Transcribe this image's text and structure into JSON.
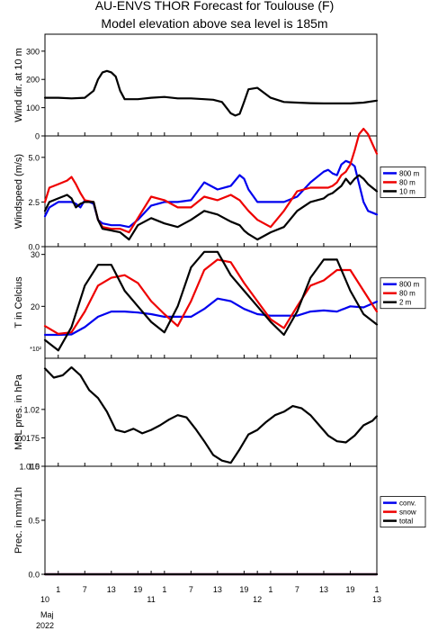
{
  "title_lines": [
    "AU-ENVS THOR Forecast for Toulouse (F)",
    "Model elevation above sea level is  185m"
  ],
  "colors": {
    "blue": "#0000ee",
    "red": "#ee0000",
    "black": "#000000"
  },
  "x_axis": {
    "tick_labels": [
      "10",
      "1",
      "7",
      "13",
      "19",
      "11",
      "1",
      "7",
      "13",
      "19",
      "12",
      "1",
      "7",
      "13",
      "19",
      "1",
      "13"
    ],
    "tick_hours": [
      0,
      3,
      9,
      15,
      21,
      24,
      27,
      33,
      39,
      45,
      48,
      51,
      57,
      63,
      69,
      75,
      75
    ],
    "month_label": "Maj",
    "year_label": "2022",
    "range_hours": [
      0,
      75
    ]
  },
  "chart_data": [
    {
      "type": "line",
      "ylabel": "Wind dir. at 10 m",
      "ylim": [
        0,
        360
      ],
      "yticks": [
        0,
        100,
        200,
        300
      ],
      "grid": false,
      "series": [
        {
          "color": "#000000",
          "x": [
            0,
            3,
            6,
            9,
            11,
            12,
            13,
            14,
            15,
            16,
            17,
            18,
            21,
            24,
            27,
            30,
            33,
            36,
            38,
            40,
            41,
            42,
            43,
            44,
            45,
            46,
            48,
            51,
            54,
            57,
            60,
            63,
            66,
            69,
            72,
            75
          ],
          "y": [
            135,
            135,
            133,
            135,
            160,
            200,
            225,
            230,
            225,
            210,
            160,
            130,
            130,
            135,
            138,
            133,
            133,
            130,
            128,
            120,
            100,
            80,
            72,
            78,
            120,
            165,
            170,
            135,
            120,
            118,
            116,
            115,
            115,
            115,
            118,
            125
          ]
        }
      ]
    },
    {
      "type": "line",
      "ylabel": "Windspeed (m/s)",
      "ylim": [
        0,
        6.2
      ],
      "yticks": [
        0,
        2.5,
        5
      ],
      "yticklabels": [
        "0.0",
        "2.5",
        "5.0"
      ],
      "grid": false,
      "legend": "right",
      "series": [
        {
          "name": "800 m",
          "color": "#0000ee",
          "x": [
            0,
            1,
            3,
            5,
            6,
            7,
            8,
            9,
            11,
            12,
            13,
            15,
            17,
            19,
            21,
            24,
            27,
            30,
            33,
            36,
            39,
            42,
            44,
            45,
            46,
            48,
            51,
            54,
            57,
            60,
            63,
            64,
            65,
            66,
            67,
            68,
            69,
            70,
            71,
            72,
            73,
            75
          ],
          "y": [
            1.7,
            2.2,
            2.5,
            2.5,
            2.5,
            2.4,
            2.2,
            2.6,
            2.4,
            1.5,
            1.3,
            1.2,
            1.2,
            1.1,
            1.5,
            2.3,
            2.5,
            2.5,
            2.6,
            3.6,
            3.2,
            3.4,
            4.0,
            3.8,
            3.2,
            2.5,
            2.5,
            2.5,
            2.8,
            3.6,
            4.2,
            4.3,
            4.1,
            4.0,
            4.6,
            4.8,
            4.7,
            4.5,
            3.5,
            2.5,
            2.0,
            1.8
          ]
        },
        {
          "name": "80 m",
          "color": "#ee0000",
          "x": [
            0,
            1,
            3,
            5,
            6,
            7,
            8,
            9,
            11,
            12,
            13,
            15,
            17,
            19,
            21,
            24,
            27,
            30,
            33,
            36,
            39,
            42,
            44,
            45,
            46,
            48,
            51,
            54,
            57,
            60,
            63,
            64,
            65,
            66,
            67,
            68,
            69,
            70,
            71,
            72,
            73,
            75
          ],
          "y": [
            2.5,
            3.3,
            3.5,
            3.7,
            3.9,
            3.5,
            3.0,
            2.6,
            2.5,
            1.5,
            1.1,
            1.0,
            1.0,
            0.8,
            1.6,
            2.8,
            2.6,
            2.2,
            2.2,
            2.8,
            2.6,
            2.9,
            2.6,
            2.3,
            2.0,
            1.5,
            1.1,
            2.0,
            3.1,
            3.3,
            3.3,
            3.3,
            3.4,
            3.6,
            4.0,
            4.2,
            4.6,
            5.4,
            6.3,
            6.6,
            6.3,
            5.2
          ]
        },
        {
          "name": "10 m",
          "color": "#000000",
          "x": [
            0,
            1,
            3,
            5,
            6,
            7,
            8,
            9,
            11,
            12,
            13,
            15,
            17,
            19,
            21,
            24,
            27,
            30,
            33,
            36,
            39,
            42,
            44,
            45,
            46,
            48,
            51,
            54,
            57,
            60,
            63,
            64,
            65,
            66,
            67,
            68,
            69,
            70,
            71,
            72,
            73,
            75
          ],
          "y": [
            2.0,
            2.5,
            2.7,
            2.9,
            2.7,
            2.2,
            2.4,
            2.5,
            2.5,
            1.5,
            1.0,
            0.9,
            0.8,
            0.4,
            1.2,
            1.6,
            1.3,
            1.1,
            1.5,
            2.0,
            1.8,
            1.4,
            1.2,
            0.9,
            0.7,
            0.4,
            0.8,
            1.1,
            2.0,
            2.5,
            2.7,
            2.9,
            3.0,
            3.2,
            3.4,
            3.8,
            3.5,
            3.8,
            4.0,
            3.8,
            3.5,
            3.1
          ]
        }
      ]
    },
    {
      "type": "line",
      "ylabel": "T in Celcius",
      "ymultiplier_label": "*10²",
      "ylim": [
        10,
        31.5
      ],
      "yticks": [
        20,
        30
      ],
      "grid": false,
      "legend": "right",
      "series": [
        {
          "name": "800 m",
          "color": "#0000ee",
          "x": [
            0,
            3,
            6,
            9,
            12,
            15,
            18,
            21,
            24,
            27,
            30,
            33,
            36,
            39,
            42,
            45,
            48,
            51,
            54,
            57,
            60,
            63,
            66,
            69,
            72,
            75
          ],
          "y": [
            14.5,
            14.5,
            14.6,
            16,
            18,
            19,
            19,
            18.8,
            18.5,
            18,
            18,
            18,
            19.5,
            21.5,
            21,
            19.5,
            18.5,
            18.2,
            18.2,
            18.2,
            19,
            19.2,
            19,
            20,
            19.8,
            20.9
          ]
        },
        {
          "name": "80 m",
          "color": "#ee0000",
          "x": [
            0,
            3,
            6,
            9,
            12,
            15,
            18,
            21,
            24,
            27,
            30,
            33,
            36,
            39,
            42,
            45,
            48,
            51,
            54,
            57,
            60,
            63,
            66,
            69,
            72,
            75
          ],
          "y": [
            16.2,
            14.7,
            15,
            19,
            24,
            25.5,
            26,
            24.5,
            21,
            18.5,
            16.2,
            21,
            27,
            29,
            28.5,
            24.5,
            21,
            17.5,
            15.8,
            20,
            24,
            25,
            27,
            27,
            23,
            19
          ]
        },
        {
          "name": "2 m",
          "color": "#000000",
          "x": [
            0,
            3,
            6,
            9,
            12,
            15,
            18,
            21,
            24,
            27,
            30,
            33,
            36,
            39,
            42,
            45,
            48,
            51,
            54,
            57,
            60,
            63,
            66,
            69,
            72,
            75
          ],
          "y": [
            13.5,
            11.5,
            16,
            24,
            28,
            28,
            23,
            20,
            17,
            15,
            20,
            27.5,
            30.5,
            30.5,
            26,
            23,
            20,
            17,
            14.5,
            19,
            25.5,
            29,
            29,
            23,
            18.5,
            16.5
          ]
        }
      ]
    },
    {
      "type": "line",
      "ylabel": "MSL pres. in hPa",
      "ylim": [
        1.015,
        1.0245
      ],
      "yticks": [
        1.015,
        1.0175,
        1.02
      ],
      "yticklabels": [
        "1.015",
        "1.0175",
        "1.02"
      ],
      "grid": false,
      "series": [
        {
          "color": "#000000",
          "x": [
            0,
            2,
            4,
            6,
            8,
            10,
            12,
            14,
            16,
            18,
            20,
            22,
            24,
            26,
            28,
            30,
            32,
            34,
            36,
            38,
            40,
            42,
            44,
            46,
            48,
            50,
            52,
            54,
            56,
            58,
            60,
            62,
            64,
            66,
            68,
            70,
            72,
            74,
            75
          ],
          "y": [
            1.0236,
            1.0228,
            1.023,
            1.0237,
            1.023,
            1.0217,
            1.021,
            1.0198,
            1.0182,
            1.018,
            1.0183,
            1.0179,
            1.0182,
            1.0186,
            1.0191,
            1.0195,
            1.0193,
            1.0183,
            1.0172,
            1.016,
            1.0155,
            1.0153,
            1.0165,
            1.0178,
            1.0182,
            1.0189,
            1.0195,
            1.0198,
            1.0203,
            1.0201,
            1.0195,
            1.0186,
            1.0177,
            1.0172,
            1.0171,
            1.0177,
            1.0186,
            1.019,
            1.0194
          ]
        }
      ]
    },
    {
      "type": "line",
      "ylabel": "Prec. in mm/1h",
      "ylim": [
        0,
        1.0
      ],
      "yticks": [
        0,
        0.5,
        1.0
      ],
      "yticklabels": [
        "0.0",
        "0.5",
        "1.0"
      ],
      "grid": false,
      "legend": "right",
      "series": [
        {
          "name": "conv.",
          "color": "#0000ee",
          "x": [
            0,
            75
          ],
          "y": [
            0,
            0
          ]
        },
        {
          "name": "snow",
          "color": "#ee0000",
          "x": [
            0,
            75
          ],
          "y": [
            0,
            0
          ]
        },
        {
          "name": "total",
          "color": "#000000",
          "x": [
            0,
            75
          ],
          "y": [
            0,
            0
          ]
        }
      ]
    }
  ]
}
